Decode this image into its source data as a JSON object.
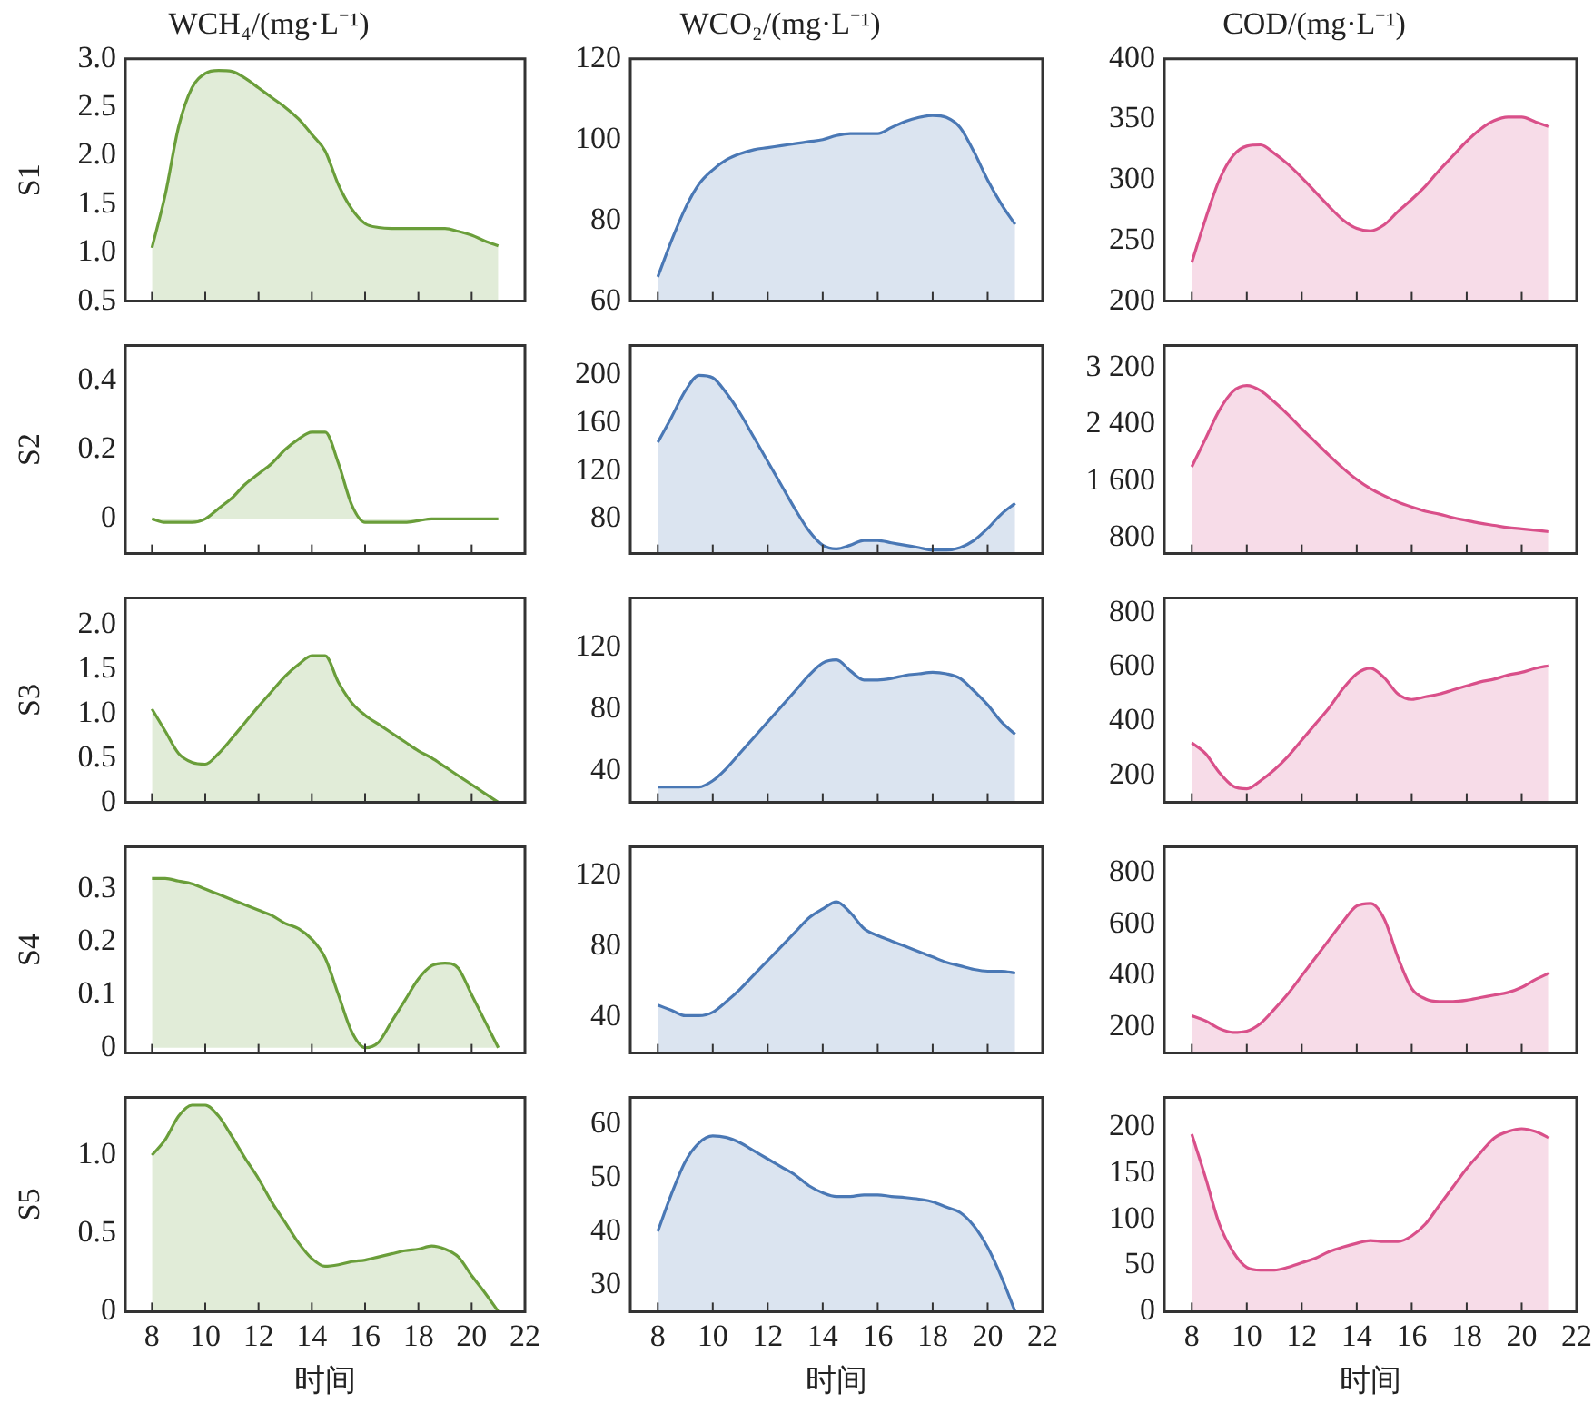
{
  "chart_data": [
    {
      "type": "area",
      "title": "WCH₄/(mg·L⁻¹)",
      "ylabel": "S1",
      "color": "#6a9e3a",
      "tick_labels": "y",
      "xlim": [
        7,
        22
      ],
      "xticks": [
        8,
        10,
        12,
        14,
        16,
        18,
        20,
        22
      ],
      "ylim": [
        0.5,
        3.0
      ],
      "yticks": [
        0.5,
        {
          "value": 1,
          "label": "1.0"
        },
        1.5,
        {
          "value": 2,
          "label": "2.0"
        },
        2.5,
        {
          "value": 3,
          "label": "3.0"
        }
      ],
      "x": [
        8,
        8.5,
        9,
        9.5,
        10,
        10.5,
        11,
        11.5,
        12,
        12.5,
        13,
        13.5,
        14,
        14.5,
        15,
        15.5,
        16,
        16.5,
        17,
        17.5,
        18,
        18.5,
        19,
        19.5,
        20,
        20.5,
        21
      ],
      "values": [
        1.05,
        1.6,
        2.3,
        2.7,
        2.85,
        2.88,
        2.87,
        2.8,
        2.7,
        2.6,
        2.5,
        2.38,
        2.22,
        2.05,
        1.7,
        1.45,
        1.3,
        1.26,
        1.25,
        1.25,
        1.25,
        1.25,
        1.25,
        1.22,
        1.18,
        1.12,
        1.07
      ]
    },
    {
      "type": "area",
      "title": "WCO₂/(mg·L⁻¹)",
      "color": "#4a78b5",
      "tick_labels": "y",
      "xlim": [
        7,
        22
      ],
      "xticks": [
        8,
        10,
        12,
        14,
        16,
        18,
        20,
        22
      ],
      "ylim": [
        60,
        120
      ],
      "yticks": [
        60,
        80,
        100,
        120
      ],
      "x": [
        8,
        8.5,
        9,
        9.5,
        10,
        10.5,
        11,
        11.5,
        12,
        12.5,
        13,
        13.5,
        14,
        14.5,
        15,
        15.5,
        16,
        16.5,
        17,
        17.5,
        18,
        18.5,
        19,
        19.5,
        20,
        20.5,
        21
      ],
      "values": [
        66,
        75,
        83,
        89,
        92.5,
        95,
        96.5,
        97.5,
        98,
        98.5,
        99,
        99.5,
        100,
        101,
        101.5,
        101.5,
        101.5,
        103,
        104.5,
        105.5,
        106,
        105.5,
        103,
        97,
        90,
        84,
        79
      ]
    },
    {
      "type": "area",
      "title": "COD/(mg·L⁻¹)",
      "color": "#d9508a",
      "tick_labels": "y",
      "xlim": [
        7,
        22
      ],
      "xticks": [
        8,
        10,
        12,
        14,
        16,
        18,
        20,
        22
      ],
      "ylim": [
        200,
        400
      ],
      "yticks": [
        200,
        250,
        300,
        350,
        400
      ],
      "x": [
        8,
        8.5,
        9,
        9.5,
        10,
        10.5,
        11,
        11.5,
        12,
        12.5,
        13,
        13.5,
        14,
        14.5,
        15,
        15.5,
        16,
        16.5,
        17,
        17.5,
        18,
        18.5,
        19,
        19.5,
        20,
        20.5,
        21
      ],
      "values": [
        232,
        268,
        300,
        320,
        328,
        329,
        322,
        313,
        302,
        290,
        278,
        267,
        260,
        258,
        263,
        274,
        284,
        295,
        308,
        320,
        332,
        342,
        349,
        352,
        352,
        348,
        344
      ]
    },
    {
      "type": "area",
      "ylabel": "S2",
      "color": "#6a9e3a",
      "tick_labels": "y",
      "xlim": [
        7,
        22
      ],
      "xticks": [
        8,
        10,
        12,
        14,
        16,
        18,
        20,
        22
      ],
      "ylim": [
        -0.1,
        0.5
      ],
      "yticks": [
        0,
        0.2,
        0.4
      ],
      "x": [
        8,
        8.5,
        9,
        9.5,
        10,
        10.5,
        11,
        11.5,
        12,
        12.5,
        13,
        13.5,
        14,
        14.5,
        15,
        15.5,
        16,
        16.5,
        17,
        17.5,
        18,
        18.5,
        19,
        19.5,
        20,
        20.5,
        21
      ],
      "values": [
        0,
        -0.01,
        -0.01,
        -0.01,
        0,
        0.03,
        0.06,
        0.1,
        0.13,
        0.16,
        0.2,
        0.23,
        0.25,
        0.25,
        0.16,
        0.04,
        -0.01,
        -0.01,
        -0.01,
        -0.01,
        -0.005,
        0,
        0,
        0,
        0,
        0,
        0
      ]
    },
    {
      "type": "area",
      "color": "#4a78b5",
      "tick_labels": "y",
      "xlim": [
        7,
        22
      ],
      "xticks": [
        8,
        10,
        12,
        14,
        16,
        18,
        20,
        22
      ],
      "ylim": [
        51,
        225
      ],
      "yticks": [
        80,
        120,
        160,
        200
      ],
      "x": [
        8,
        8.5,
        9,
        9.5,
        10,
        10.5,
        11,
        11.5,
        12,
        12.5,
        13,
        13.5,
        14,
        14.5,
        15,
        15.5,
        16,
        16.5,
        17,
        17.5,
        18,
        18.5,
        19,
        19.5,
        20,
        20.5,
        21
      ],
      "values": [
        144,
        165,
        187,
        200,
        198,
        185,
        168,
        148,
        128,
        108,
        88,
        70,
        58,
        55,
        58,
        62,
        62,
        60,
        58,
        56,
        54,
        54,
        56,
        62,
        72,
        84,
        93
      ]
    },
    {
      "type": "area",
      "color": "#d9508a",
      "tick_labels": "y",
      "xlim": [
        7,
        22
      ],
      "xticks": [
        8,
        10,
        12,
        14,
        16,
        18,
        20,
        22
      ],
      "ylim": [
        570,
        3520
      ],
      "yticks": [
        800,
        {
          "value": 1600,
          "label": "1 600"
        },
        {
          "value": 2400,
          "label": "2 400"
        },
        {
          "value": 3200,
          "label": "3 200"
        }
      ],
      "x": [
        8,
        8.5,
        9,
        9.5,
        10,
        10.5,
        11,
        11.5,
        12,
        12.5,
        13,
        13.5,
        14,
        14.5,
        15,
        15.5,
        16,
        16.5,
        17,
        17.5,
        18,
        18.5,
        19,
        19.5,
        20,
        20.5,
        21
      ],
      "values": [
        1800,
        2200,
        2600,
        2870,
        2950,
        2880,
        2720,
        2540,
        2340,
        2150,
        1960,
        1780,
        1620,
        1490,
        1390,
        1300,
        1230,
        1170,
        1130,
        1080,
        1040,
        1000,
        970,
        940,
        920,
        900,
        880
      ]
    },
    {
      "type": "area",
      "ylabel": "S3",
      "color": "#6a9e3a",
      "tick_labels": "y",
      "xlim": [
        7,
        22
      ],
      "xticks": [
        8,
        10,
        12,
        14,
        16,
        18,
        20,
        22
      ],
      "ylim": [
        0,
        2.3
      ],
      "yticks": [
        0,
        0.5,
        {
          "value": 1,
          "label": "1.0"
        },
        1.5,
        {
          "value": 2,
          "label": "2.0"
        }
      ],
      "x": [
        8,
        8.5,
        9,
        9.5,
        10,
        10.5,
        11,
        11.5,
        12,
        12.5,
        13,
        13.5,
        14,
        14.5,
        15,
        15.5,
        16,
        16.5,
        17,
        17.5,
        18,
        18.5,
        19,
        19.5,
        20,
        20.5,
        21
      ],
      "values": [
        1.05,
        0.8,
        0.55,
        0.45,
        0.43,
        0.55,
        0.72,
        0.9,
        1.08,
        1.25,
        1.42,
        1.55,
        1.65,
        1.65,
        1.35,
        1.12,
        0.98,
        0.88,
        0.78,
        0.68,
        0.58,
        0.5,
        0.4,
        0.3,
        0.2,
        0.1,
        0
      ]
    },
    {
      "type": "area",
      "color": "#4a78b5",
      "tick_labels": "y",
      "xlim": [
        7,
        22
      ],
      "xticks": [
        8,
        10,
        12,
        14,
        16,
        18,
        20,
        22
      ],
      "ylim": [
        20,
        152
      ],
      "yticks": [
        40,
        80,
        120
      ],
      "x": [
        8,
        8.5,
        9,
        9.5,
        10,
        10.5,
        11,
        11.5,
        12,
        12.5,
        13,
        13.5,
        14,
        14.5,
        15,
        15.5,
        16,
        16.5,
        17,
        17.5,
        18,
        18.5,
        19,
        19.5,
        20,
        20.5,
        21
      ],
      "values": [
        30,
        30,
        30,
        30,
        34,
        42,
        52,
        62,
        72,
        82,
        92,
        102,
        110,
        112,
        105,
        99,
        99,
        100,
        102,
        103,
        104,
        103,
        100,
        92,
        83,
        72,
        64
      ]
    },
    {
      "type": "area",
      "color": "#d9508a",
      "tick_labels": "y",
      "xlim": [
        7,
        22
      ],
      "xticks": [
        8,
        10,
        12,
        14,
        16,
        18,
        20,
        22
      ],
      "ylim": [
        100,
        855
      ],
      "yticks": [
        200,
        400,
        600,
        800
      ],
      "x": [
        8,
        8.5,
        9,
        9.5,
        10,
        10.5,
        11,
        11.5,
        12,
        12.5,
        13,
        13.5,
        14,
        14.5,
        15,
        15.5,
        16,
        16.5,
        17,
        17.5,
        18,
        18.5,
        19,
        19.5,
        20,
        20.5,
        21
      ],
      "values": [
        320,
        280,
        210,
        160,
        150,
        180,
        220,
        270,
        330,
        390,
        450,
        520,
        575,
        595,
        560,
        500,
        480,
        490,
        500,
        515,
        530,
        545,
        555,
        570,
        580,
        595,
        605
      ]
    },
    {
      "type": "area",
      "ylabel": "S4",
      "color": "#6a9e3a",
      "tick_labels": "y",
      "xlim": [
        7,
        22
      ],
      "xticks": [
        8,
        10,
        12,
        14,
        16,
        18,
        20,
        22
      ],
      "ylim": [
        -0.01,
        0.38
      ],
      "yticks": [
        0,
        0.1,
        0.2,
        0.3
      ],
      "x": [
        8,
        8.5,
        9,
        9.5,
        10,
        10.5,
        11,
        11.5,
        12,
        12.5,
        13,
        13.5,
        14,
        14.5,
        15,
        15.5,
        16,
        16.5,
        17,
        17.5,
        18,
        18.5,
        19,
        19.5,
        20,
        20.5,
        21
      ],
      "values": [
        0.32,
        0.32,
        0.315,
        0.31,
        0.3,
        0.29,
        0.28,
        0.27,
        0.26,
        0.25,
        0.235,
        0.225,
        0.205,
        0.17,
        0.1,
        0.03,
        0,
        0.01,
        0.05,
        0.09,
        0.13,
        0.155,
        0.16,
        0.15,
        0.1,
        0.05,
        0
      ]
    },
    {
      "type": "area",
      "color": "#4a78b5",
      "tick_labels": "y",
      "xlim": [
        7,
        22
      ],
      "xticks": [
        8,
        10,
        12,
        14,
        16,
        18,
        20,
        22
      ],
      "ylim": [
        20,
        136
      ],
      "yticks": [
        40,
        80,
        120
      ],
      "x": [
        8,
        8.5,
        9,
        9.5,
        10,
        10.5,
        11,
        11.5,
        12,
        12.5,
        13,
        13.5,
        14,
        14.5,
        15,
        15.5,
        16,
        16.5,
        17,
        17.5,
        18,
        18.5,
        19,
        19.5,
        20,
        20.5,
        21
      ],
      "values": [
        47,
        44,
        41,
        41,
        43,
        49,
        56,
        64,
        72,
        80,
        88,
        96,
        101,
        105,
        99,
        90,
        86,
        83,
        80,
        77,
        74,
        71,
        69,
        67,
        66,
        66,
        65
      ]
    },
    {
      "type": "area",
      "color": "#d9508a",
      "tick_labels": "y",
      "xlim": [
        7,
        22
      ],
      "xticks": [
        8,
        10,
        12,
        14,
        16,
        18,
        20,
        22
      ],
      "ylim": [
        100,
        900
      ],
      "yticks": [
        200,
        400,
        600,
        800
      ],
      "x": [
        8,
        8.5,
        9,
        9.5,
        10,
        10.5,
        11,
        11.5,
        12,
        12.5,
        13,
        13.5,
        14,
        14.5,
        15,
        15.5,
        16,
        16.5,
        17,
        17.5,
        18,
        18.5,
        19,
        19.5,
        20,
        20.5,
        21
      ],
      "values": [
        245,
        225,
        195,
        180,
        185,
        215,
        270,
        330,
        400,
        470,
        540,
        610,
        670,
        680,
        620,
        470,
        350,
        310,
        300,
        300,
        305,
        315,
        325,
        335,
        355,
        385,
        410
      ]
    },
    {
      "type": "area",
      "ylabel": "S5",
      "xlabel": "时间",
      "color": "#6a9e3a",
      "xlim": [
        7,
        22
      ],
      "xticks": [
        8,
        10,
        12,
        14,
        16,
        18,
        20,
        22
      ],
      "ylim": [
        0,
        1.37
      ],
      "yticks": [
        0,
        0.5,
        {
          "value": 1,
          "label": "1.0"
        }
      ],
      "x": [
        8,
        8.5,
        9,
        9.5,
        10,
        10.5,
        11,
        11.5,
        12,
        12.5,
        13,
        13.5,
        14,
        14.5,
        15,
        15.5,
        16,
        16.5,
        17,
        17.5,
        18,
        18.5,
        19,
        19.5,
        20,
        20.5,
        21
      ],
      "values": [
        1.0,
        1.1,
        1.25,
        1.32,
        1.32,
        1.25,
        1.12,
        0.98,
        0.85,
        0.7,
        0.57,
        0.44,
        0.34,
        0.29,
        0.3,
        0.32,
        0.33,
        0.35,
        0.37,
        0.39,
        0.4,
        0.42,
        0.4,
        0.35,
        0.23,
        0.12,
        0
      ]
    },
    {
      "type": "area",
      "xlabel": "时间",
      "color": "#4a78b5",
      "xlim": [
        7,
        22
      ],
      "xticks": [
        8,
        10,
        12,
        14,
        16,
        18,
        20,
        22
      ],
      "ylim": [
        25,
        65
      ],
      "yticks": [
        30,
        40,
        50,
        60
      ],
      "x": [
        8,
        8.5,
        9,
        9.5,
        10,
        10.5,
        11,
        11.5,
        12,
        12.5,
        13,
        13.5,
        14,
        14.5,
        15,
        15.5,
        16,
        16.5,
        17,
        17.5,
        18,
        18.5,
        19,
        19.5,
        20,
        20.5,
        21
      ],
      "values": [
        40,
        47,
        53,
        56.5,
        57.8,
        57.5,
        56.5,
        55,
        53.5,
        52,
        50.5,
        48.5,
        47.2,
        46.5,
        46.5,
        46.8,
        46.8,
        46.5,
        46.3,
        46,
        45.5,
        44.5,
        43.5,
        41,
        37,
        31.5,
        25
      ]
    },
    {
      "type": "area",
      "xlabel": "时间",
      "color": "#d9508a",
      "xlim": [
        7,
        22
      ],
      "xticks": [
        8,
        10,
        12,
        14,
        16,
        18,
        20,
        22
      ],
      "ylim": [
        0,
        232
      ],
      "yticks": [
        0,
        50,
        100,
        150,
        200
      ],
      "x": [
        8,
        8.5,
        9,
        9.5,
        10,
        10.5,
        11,
        11.5,
        12,
        12.5,
        13,
        13.5,
        14,
        14.5,
        15,
        15.5,
        16,
        16.5,
        17,
        17.5,
        18,
        18.5,
        19,
        19.5,
        20,
        20.5,
        21
      ],
      "values": [
        192,
        145,
        95,
        65,
        48,
        45,
        45,
        48,
        53,
        58,
        65,
        70,
        74,
        77,
        76,
        76,
        82,
        95,
        115,
        135,
        155,
        172,
        188,
        195,
        198,
        195,
        188
      ]
    }
  ]
}
